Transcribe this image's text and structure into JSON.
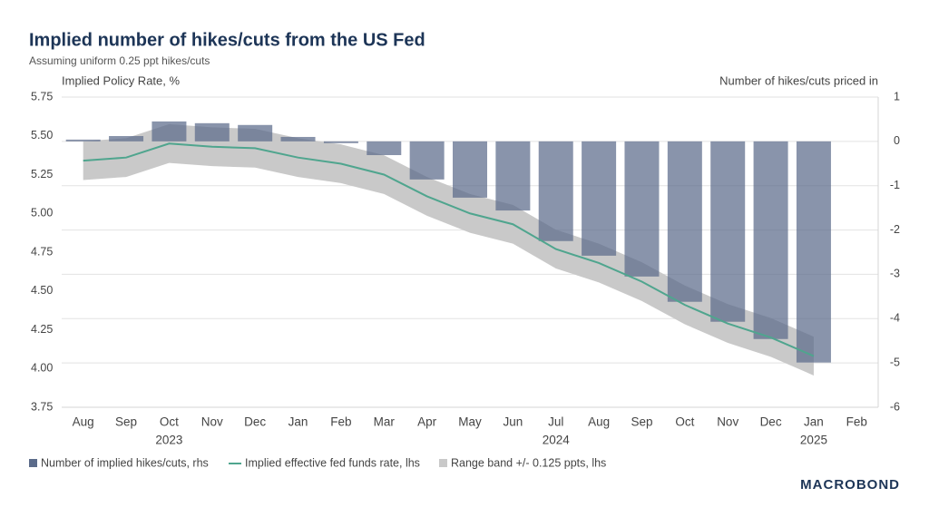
{
  "chart_data": {
    "type": "bar_line_band",
    "title": "Implied number of hikes/cuts from the US Fed",
    "subtitle": "Assuming uniform 0.25 ppt hikes/cuts",
    "y_label": "Implied Policy Rate, %",
    "y2_label": "Number of hikes/cuts priced in",
    "categories": [
      "Aug",
      "Sep",
      "Oct",
      "Nov",
      "Dec",
      "Jan",
      "Feb",
      "Mar",
      "Apr",
      "May",
      "Jun",
      "Jul",
      "Aug",
      "Sep",
      "Oct",
      "Nov",
      "Dec",
      "Jan",
      "Feb"
    ],
    "category_years": [
      null,
      null,
      "2023",
      null,
      null,
      null,
      null,
      null,
      null,
      null,
      null,
      "2024",
      null,
      null,
      null,
      null,
      null,
      "2025",
      null
    ],
    "ylim": [
      3.75,
      5.75
    ],
    "yticks": [
      5.75,
      {
        "value": 5.5,
        "label": "5.50"
      },
      5.25,
      {
        "value": 5.0,
        "label": "5.00"
      },
      4.75,
      {
        "value": 4.5,
        "label": "4.50"
      },
      4.25,
      {
        "value": 4.0,
        "label": "4.00"
      },
      3.75
    ],
    "y2lim": [
      -6,
      1
    ],
    "y2ticks": [
      1,
      0,
      -1,
      -2,
      -3,
      -4,
      -5,
      -6
    ],
    "grid": true,
    "series": [
      {
        "name": "Number of implied hikes/cuts, rhs",
        "kind": "bar",
        "axis": "y2",
        "color": "#5b6b8a",
        "values": [
          0.04,
          0.12,
          0.45,
          0.41,
          0.37,
          0.1,
          -0.04,
          -0.31,
          -0.86,
          -1.27,
          -1.56,
          -2.25,
          -2.58,
          -3.05,
          -3.62,
          -4.07,
          -4.46,
          -4.99,
          null
        ]
      },
      {
        "name": "Implied effective fed funds rate, lhs",
        "kind": "line",
        "color": "#4fa58e",
        "values": [
          5.34,
          5.36,
          5.45,
          5.43,
          5.42,
          5.36,
          5.32,
          5.25,
          5.11,
          5.0,
          4.93,
          4.77,
          4.68,
          4.56,
          4.41,
          4.29,
          4.2,
          4.08,
          null
        ]
      },
      {
        "name": "Range band +/- 0.125 ppts, lhs",
        "kind": "band",
        "color": "#c9c9c9",
        "upper": [
          5.465,
          5.485,
          5.575,
          5.555,
          5.545,
          5.485,
          5.445,
          5.375,
          5.235,
          5.125,
          5.055,
          4.895,
          4.805,
          4.685,
          4.535,
          4.415,
          4.325,
          4.205,
          null
        ],
        "lower": [
          5.215,
          5.235,
          5.325,
          5.305,
          5.295,
          5.235,
          5.195,
          5.125,
          4.985,
          4.875,
          4.805,
          4.645,
          4.555,
          4.435,
          4.285,
          4.165,
          4.075,
          3.955,
          null
        ]
      }
    ],
    "logo": "MACROBOND"
  }
}
